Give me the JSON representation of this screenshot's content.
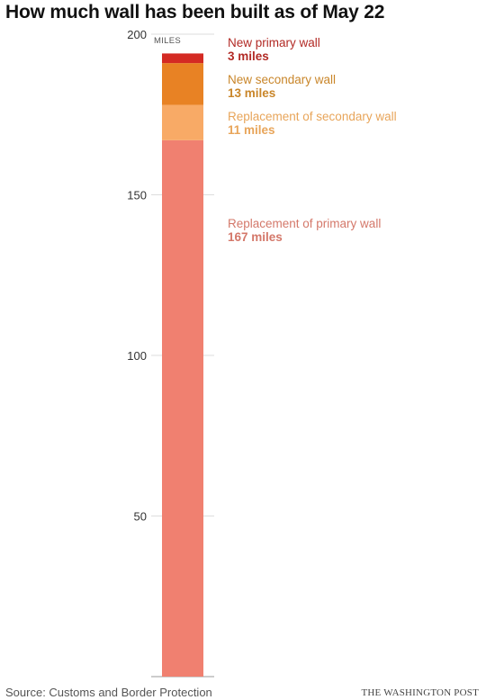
{
  "title": "How much wall has been built as of May 22",
  "source": "Source: Customs and Border Protection",
  "credit": "THE WASHINGTON POST",
  "chart_data": {
    "type": "bar",
    "stacked": true,
    "categories": [
      ""
    ],
    "unit_label": "MILES",
    "ylim": [
      0,
      200
    ],
    "yticks": [
      50,
      100,
      150,
      200
    ],
    "grid": true,
    "series": [
      {
        "name": "Replacement of primary wall",
        "value": 167,
        "value_label": "167 miles",
        "color": "#f08070",
        "label_color": "#d4786a"
      },
      {
        "name": "Replacement of secondary wall",
        "value": 11,
        "value_label": "11 miles",
        "color": "#f8aa66",
        "label_color": "#e8a55a"
      },
      {
        "name": "New secondary wall",
        "value": 13,
        "value_label": "13 miles",
        "color": "#e88224",
        "label_color": "#c9862a"
      },
      {
        "name": "New primary wall",
        "value": 3,
        "value_label": "3 miles",
        "color": "#d42a23",
        "label_color": "#b22a25"
      }
    ]
  }
}
